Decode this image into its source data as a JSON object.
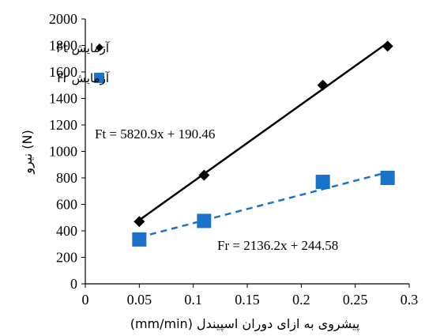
{
  "chart_data": {
    "type": "scatter",
    "xlabel": "پیشروی به ازای دوران اسپیندل (mm/min)",
    "ylabel": "نیرو (N)",
    "xlim": [
      0,
      0.3
    ],
    "ylim": [
      0,
      2000
    ],
    "x_ticks": [
      "0",
      "0.05",
      "0.1",
      "0.15",
      "0.2",
      "0.25",
      "0.3"
    ],
    "y_ticks": [
      "0",
      "200",
      "400",
      "600",
      "800",
      "1000",
      "1200",
      "1400",
      "1600",
      "1800",
      "2000"
    ],
    "grid": false,
    "legend_position": "top-left",
    "series": [
      {
        "name": "آزمایش Ft",
        "marker": "diamond",
        "color": "#000000",
        "x": [
          0.05,
          0.11,
          0.22,
          0.28
        ],
        "y": [
          470,
          820,
          1500,
          1795
        ],
        "trendline": {
          "slope": 5820.9,
          "intercept": 190.46,
          "style": "solid",
          "color": "#000000",
          "label": "Ft = 5820.9x + 190.46"
        }
      },
      {
        "name": "آزمایش Fr",
        "marker": "square",
        "color": "#1a73c8",
        "x": [
          0.05,
          0.11,
          0.22,
          0.28
        ],
        "y": [
          335,
          475,
          770,
          800
        ],
        "trendline": {
          "slope": 2136.2,
          "intercept": 244.58,
          "style": "dashed",
          "color": "#1a73c8",
          "label": "Fr = 2136.2x + 244.58"
        }
      }
    ]
  }
}
